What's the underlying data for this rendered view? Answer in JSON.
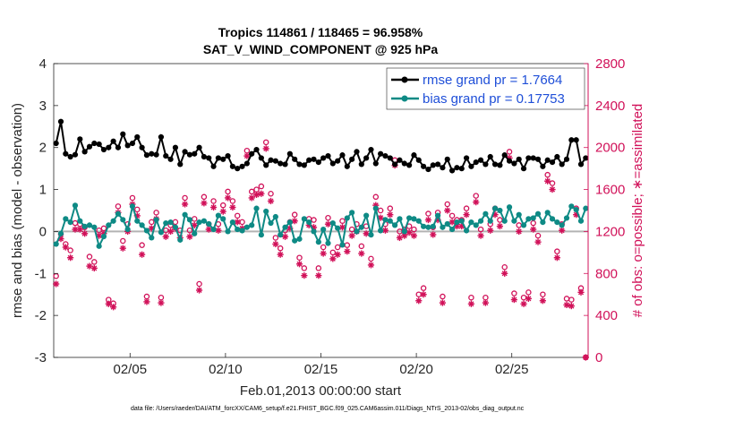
{
  "chart_data": {
    "type": "line",
    "title": "Tropics 114861 / 118465 = 96.958%",
    "subtitle": "SAT_V_WIND_COMPONENT @ 925 hPa",
    "xlabel": "Feb.01,2013 00:00:00 start",
    "ylabel": "rmse and bias (model - observation)",
    "ylabel_right": "# of obs: o=possible; ∗=assimilated",
    "footnote": "data file: /Users/raeder/DAI/ATM_forcXX/CAM6_setup/f.e21.FHIST_BGC.f09_025.CAM6assim.011/Diags_NTrS_2013-02/obs_diag_output.nc",
    "ylim": [
      -3,
      4
    ],
    "ylim_right": [
      0,
      2800
    ],
    "xlim": [
      1.0,
      29.0
    ],
    "xticks": [
      5,
      10,
      15,
      20,
      25
    ],
    "xtick_labels": [
      "02/05",
      "02/10",
      "02/15",
      "02/20",
      "02/25"
    ],
    "yticks": [
      -3,
      -2,
      -1,
      0,
      1,
      2,
      3,
      4
    ],
    "ytick_labels": [
      "-3",
      "-2",
      "-1",
      "0",
      "1",
      "2",
      "3",
      "4"
    ],
    "yticks_right": [
      0,
      400,
      800,
      1200,
      1600,
      2000,
      2400,
      2800
    ],
    "ytick_labels_right": [
      "0",
      "400",
      "800",
      "1200",
      "1600",
      "2000",
      "2400",
      "2800"
    ],
    "legend": [
      "rmse grand pr = 1.7664",
      "bias grand pr = 0.17753"
    ],
    "legend_placement": "top-right",
    "grid": false,
    "x": [
      1.125,
      1.375,
      1.625,
      1.875,
      2.125,
      2.375,
      2.625,
      2.875,
      3.125,
      3.375,
      3.625,
      3.875,
      4.125,
      4.375,
      4.625,
      4.875,
      5.125,
      5.375,
      5.625,
      5.875,
      6.125,
      6.375,
      6.625,
      6.875,
      7.125,
      7.375,
      7.625,
      7.875,
      8.125,
      8.375,
      8.625,
      8.875,
      9.125,
      9.375,
      9.625,
      9.875,
      10.125,
      10.375,
      10.625,
      10.875,
      11.125,
      11.375,
      11.625,
      11.875,
      12.125,
      12.375,
      12.625,
      12.875,
      13.125,
      13.375,
      13.625,
      13.875,
      14.125,
      14.375,
      14.625,
      14.875,
      15.125,
      15.375,
      15.625,
      15.875,
      16.125,
      16.375,
      16.625,
      16.875,
      17.125,
      17.375,
      17.625,
      17.875,
      18.125,
      18.375,
      18.625,
      18.875,
      19.125,
      19.375,
      19.625,
      19.875,
      20.125,
      20.375,
      20.625,
      20.875,
      21.125,
      21.375,
      21.625,
      21.875,
      22.125,
      22.375,
      22.625,
      22.875,
      23.125,
      23.375,
      23.625,
      23.875,
      24.125,
      24.375,
      24.625,
      24.875,
      25.125,
      25.375,
      25.625,
      25.875,
      26.125,
      26.375,
      26.625,
      26.875,
      27.125,
      27.375,
      27.625,
      27.875,
      28.125,
      28.375,
      28.625,
      28.875
    ],
    "series": [
      {
        "name": "rmse",
        "color": "#000000",
        "values": [
          2.1,
          2.62,
          1.85,
          1.78,
          1.83,
          2.2,
          1.9,
          2.02,
          2.1,
          2.08,
          1.95,
          2.0,
          2.15,
          2.0,
          2.32,
          2.05,
          2.1,
          2.25,
          2.0,
          1.82,
          1.85,
          1.83,
          2.25,
          1.8,
          1.72,
          2.0,
          1.6,
          1.9,
          1.83,
          1.85,
          2.0,
          1.78,
          1.75,
          1.55,
          1.75,
          1.72,
          1.8,
          1.55,
          1.5,
          1.55,
          1.62,
          1.85,
          1.95,
          1.75,
          1.58,
          1.7,
          1.68,
          1.62,
          1.6,
          1.85,
          1.72,
          1.6,
          1.58,
          1.7,
          1.72,
          1.65,
          1.75,
          1.8,
          1.62,
          1.68,
          1.82,
          1.55,
          1.72,
          1.9,
          1.6,
          1.75,
          1.95,
          1.62,
          1.85,
          1.8,
          1.75,
          1.6,
          1.7,
          1.62,
          1.58,
          1.82,
          1.7,
          1.55,
          1.48,
          1.58,
          1.6,
          1.52,
          1.72,
          1.45,
          1.52,
          1.5,
          1.75,
          1.55,
          1.65,
          1.7,
          1.6,
          1.78,
          1.6,
          1.58,
          1.82,
          1.68,
          1.62,
          1.72,
          1.5,
          1.75,
          1.75,
          1.72,
          1.55,
          1.7,
          1.65,
          1.78,
          1.6,
          1.72,
          2.18,
          2.18,
          1.6,
          1.75
        ]
      },
      {
        "name": "bias",
        "color": "#0e8a85",
        "values": [
          -0.3,
          -0.05,
          0.3,
          0.22,
          0.62,
          0.25,
          0.12,
          0.15,
          0.1,
          -0.35,
          -0.12,
          0.15,
          0.25,
          0.42,
          0.28,
          0.05,
          0.6,
          0.25,
          0.15,
          0.02,
          -0.15,
          0.28,
          -0.02,
          0.2,
          0.22,
          0.1,
          -0.2,
          0.4,
          0.28,
          -0.05,
          0.22,
          0.25,
          0.18,
          0.05,
          0.38,
          0.3,
          0.0,
          0.22,
          0.05,
          0.02,
          0.1,
          0.15,
          0.55,
          -0.08,
          0.48,
          0.2,
          0.35,
          -0.08,
          0.1,
          0.22,
          -0.22,
          -0.18,
          0.3,
          0.22,
          0.0,
          -0.25,
          0.05,
          -0.28,
          0.2,
          0.08,
          -0.32,
          0.32,
          0.45,
          0.0,
          0.1,
          0.38,
          -0.08,
          0.55,
          0.02,
          0.28,
          0.25,
          0.15,
          0.3,
          0.0,
          0.32,
          0.3,
          0.25,
          0.12,
          0.1,
          0.12,
          0.38,
          0.1,
          0.18,
          0.05,
          0.22,
          0.25,
          0.02,
          0.22,
          0.15,
          0.25,
          0.42,
          0.25,
          0.55,
          0.5,
          0.25,
          0.58,
          0.25,
          0.4,
          0.15,
          0.3,
          0.32,
          0.42,
          0.22,
          0.45,
          0.3,
          0.22,
          0.15,
          0.32,
          0.6,
          0.52,
          0.25,
          0.55
        ]
      },
      {
        "name": "possible",
        "color": "#d11159",
        "marker": "o",
        "values": [
          775,
          1175,
          1080,
          1020,
          1280,
          1270,
          1240,
          960,
          910,
          1210,
          1230,
          550,
          515,
          1440,
          1110,
          1270,
          1520,
          1410,
          1070,
          580,
          1290,
          1380,
          570,
          1210,
          1260,
          1290,
          1210,
          1520,
          1210,
          1320,
          700,
          1530,
          1270,
          1490,
          1270,
          1450,
          1580,
          1490,
          1350,
          1290,
          1970,
          1580,
          1600,
          1630,
          2050,
          1560,
          1140,
          1040,
          1210,
          1290,
          1360,
          950,
          850,
          1320,
          1310,
          850,
          1050,
          1330,
          1000,
          1050,
          1300,
          1070,
          1220,
          1270,
          1060,
          1250,
          940,
          1530,
          1400,
          1270,
          1420,
          1880,
          1200,
          1220,
          1250,
          1220,
          600,
          660,
          1370,
          1240,
          1380,
          580,
          1460,
          1350,
          1310,
          1310,
          1420,
          570,
          1540,
          1220,
          570,
          1270,
          1420,
          1310,
          860,
          1960,
          610,
          1260,
          570,
          620,
          1280,
          1160,
          600,
          1740,
          1660,
          1010,
          1270,
          560,
          550,
          1420,
          660,
          0
        ]
      },
      {
        "name": "assimilated",
        "color": "#d11159",
        "marker": "*",
        "values": [
          700,
          1130,
          1050,
          950,
          1220,
          1220,
          1180,
          870,
          850,
          1160,
          1180,
          510,
          480,
          1380,
          1040,
          1200,
          1460,
          1350,
          980,
          530,
          1230,
          1320,
          520,
          1150,
          1200,
          1230,
          1140,
          1460,
          1150,
          1260,
          640,
          1470,
          1220,
          1430,
          1210,
          1390,
          1520,
          1430,
          1290,
          1230,
          1920,
          1520,
          1550,
          1560,
          1990,
          1490,
          1080,
          980,
          1150,
          1230,
          1300,
          890,
          780,
          1260,
          1240,
          780,
          990,
          1270,
          940,
          980,
          1240,
          1010,
          1160,
          1200,
          990,
          1180,
          880,
          1450,
          1330,
          1210,
          1360,
          1830,
          1140,
          1160,
          1190,
          1160,
          540,
          600,
          1310,
          1170,
          1310,
          520,
          1400,
          1290,
          1250,
          1250,
          1360,
          510,
          1480,
          1160,
          520,
          1210,
          1360,
          1250,
          800,
          1900,
          550,
          1200,
          510,
          560,
          1220,
          1100,
          540,
          1680,
          1600,
          950,
          1210,
          500,
          490,
          1360,
          620,
          0
        ]
      }
    ]
  }
}
